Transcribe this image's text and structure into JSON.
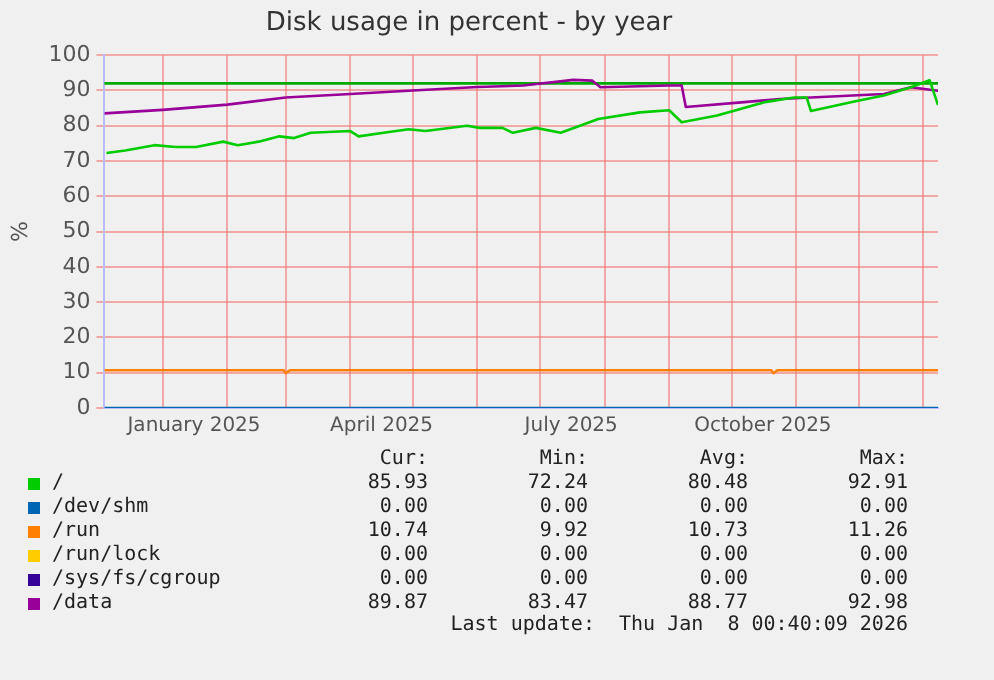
{
  "chart_data": {
    "type": "line",
    "title": "Disk usage in percent - by year",
    "ylabel": "%",
    "xlim": [
      "2024-12-04",
      "2026-01-08"
    ],
    "xticks": [
      {
        "value": "2025-01-01",
        "label": null
      },
      {
        "value": "2025-01-16",
        "label": "January 2025"
      },
      {
        "value": "2025-02-01",
        "label": null
      },
      {
        "value": "2025-03-01",
        "label": null
      },
      {
        "value": "2025-04-01",
        "label": null
      },
      {
        "value": "2025-04-16",
        "label": "April 2025"
      },
      {
        "value": "2025-05-01",
        "label": null
      },
      {
        "value": "2025-06-01",
        "label": null
      },
      {
        "value": "2025-07-01",
        "label": null
      },
      {
        "value": "2025-07-16",
        "label": "July 2025"
      },
      {
        "value": "2025-08-01",
        "label": null
      },
      {
        "value": "2025-09-01",
        "label": null
      },
      {
        "value": "2025-10-01",
        "label": null
      },
      {
        "value": "2025-10-16",
        "label": "October 2025"
      },
      {
        "value": "2025-11-01",
        "label": null
      },
      {
        "value": "2025-12-01",
        "label": null
      },
      {
        "value": "2026-01-01",
        "label": null
      }
    ],
    "ylim": [
      0,
      100
    ],
    "yticks": [
      0,
      10,
      20,
      30,
      40,
      50,
      60,
      70,
      80,
      90,
      100
    ],
    "grid": true,
    "legend": "bottom",
    "marker": "none",
    "line_style": "solid",
    "series": [
      {
        "name": "/",
        "color": "#00cc00",
        "x": [
          "2024-12-05",
          "2024-12-14",
          "2024-12-28",
          "2025-01-07",
          "2025-01-17",
          "2025-01-30",
          "2025-02-06",
          "2025-02-16",
          "2025-02-26",
          "2025-03-05",
          "2025-03-13",
          "2025-04-01",
          "2025-04-05",
          "2025-04-17",
          "2025-04-29",
          "2025-05-07",
          "2025-05-27",
          "2025-06-02",
          "2025-06-13",
          "2025-06-18",
          "2025-06-29",
          "2025-07-11",
          "2025-07-29",
          "2025-08-18",
          "2025-09-01",
          "2025-09-07",
          "2025-09-24",
          "2025-10-17",
          "2025-10-31",
          "2025-11-06",
          "2025-11-08",
          "2025-11-30",
          "2025-12-13",
          "2025-12-26",
          "2026-01-04",
          "2026-01-08"
        ],
        "values": [
          72.3,
          73,
          74.5,
          74,
          74,
          75.5,
          74.5,
          75.5,
          77,
          76.5,
          78,
          78.5,
          77,
          78,
          79,
          78.5,
          80,
          79.4,
          79.4,
          78,
          79.4,
          78,
          81.9,
          83.8,
          84.4,
          81,
          82.9,
          86.7,
          88,
          88,
          84.2,
          87,
          88.6,
          90.9,
          92.9,
          85.9
        ]
      },
      {
        "name": "/dev/shm",
        "color": "#0066b3",
        "x": [
          "2024-12-04",
          "2026-01-08"
        ],
        "values": [
          0,
          0
        ]
      },
      {
        "name": "/run",
        "color": "#ff8000",
        "x": [
          "2024-12-04",
          "2025-02-28",
          "2025-03-01",
          "2025-03-03",
          "2025-10-20",
          "2025-10-21",
          "2025-10-23",
          "2026-01-08"
        ],
        "values": [
          10.7,
          10.7,
          9.9,
          10.7,
          10.7,
          9.9,
          10.7,
          10.7
        ]
      },
      {
        "name": "/run/lock",
        "color": "#ffcc00"
      },
      {
        "name": "/sys/fs/cgroup",
        "color": "#330099"
      },
      {
        "name": "/data",
        "color": "#990099",
        "x": [
          "2024-12-04",
          "2025-01-01",
          "2025-02-01",
          "2025-03-01",
          "2025-04-01",
          "2025-05-01",
          "2025-06-01",
          "2025-06-23",
          "2025-07-17",
          "2025-07-26",
          "2025-07-30",
          "2025-09-01",
          "2025-09-07",
          "2025-09-09",
          "2025-10-07",
          "2025-10-24",
          "2025-12-13",
          "2025-12-26",
          "2026-01-08"
        ],
        "values": [
          83.5,
          84.5,
          86,
          88,
          89,
          90,
          91,
          91.4,
          93,
          92.8,
          90.9,
          91.4,
          91.4,
          85.3,
          86.7,
          87.6,
          89,
          90.9,
          89.9
        ]
      }
    ],
    "ref_lines": [
      {
        "axis": "y",
        "value": 92,
        "label": null,
        "color": "#00aa00"
      }
    ],
    "annotations": [
      "Cur:",
      "Min:",
      "Avg:",
      "Max:",
      "85.93",
      "72.24",
      "80.48",
      "92.91",
      "0.00",
      "0.00",
      "0.00",
      "0.00",
      "10.74",
      "9.92",
      "10.73",
      "11.26",
      "0.00",
      "0.00",
      "0.00",
      "0.00",
      "0.00",
      "0.00",
      "0.00",
      "0.00",
      "89.87",
      "83.47",
      "88.77",
      "92.98",
      "Last update:  Thu Jan  8 00:40:09 2026"
    ]
  }
}
